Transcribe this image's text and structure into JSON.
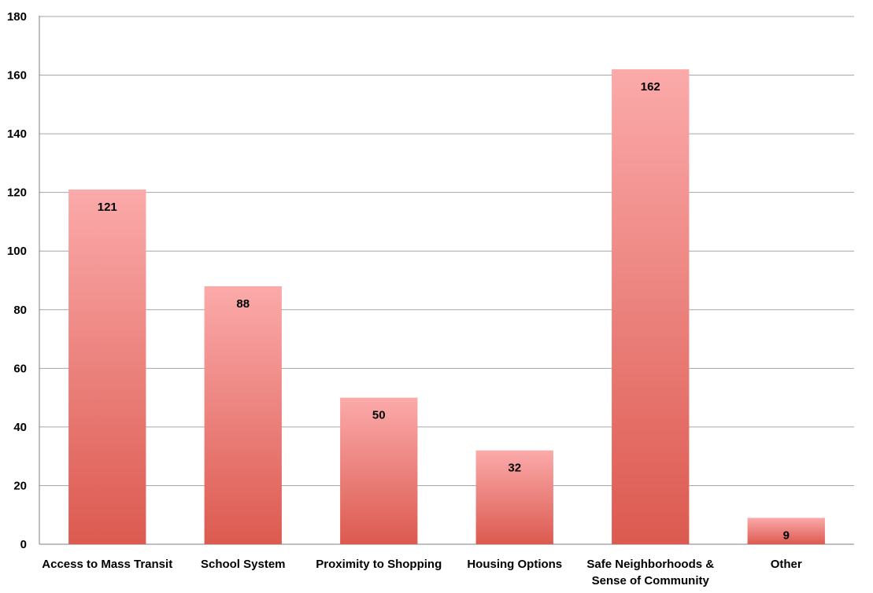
{
  "chart_data": {
    "type": "bar",
    "categories": [
      [
        "Access to Mass Transit"
      ],
      [
        "School System"
      ],
      [
        "Proximity to Shopping"
      ],
      [
        "Housing Options"
      ],
      [
        "Safe Neighborhoods &",
        "Sense of Community"
      ],
      [
        "Other"
      ]
    ],
    "values": [
      121,
      88,
      50,
      32,
      162,
      9
    ],
    "data_labels": [
      "121",
      "88",
      "50",
      "32",
      "162",
      "9"
    ],
    "yticks": [
      "0",
      "20",
      "40",
      "60",
      "80",
      "100",
      "120",
      "140",
      "160",
      "180"
    ],
    "ylim": [
      0,
      180
    ],
    "grid": true,
    "bar_gradient": {
      "top": "#fbaaaa",
      "bottom": "#dc5a50"
    }
  }
}
